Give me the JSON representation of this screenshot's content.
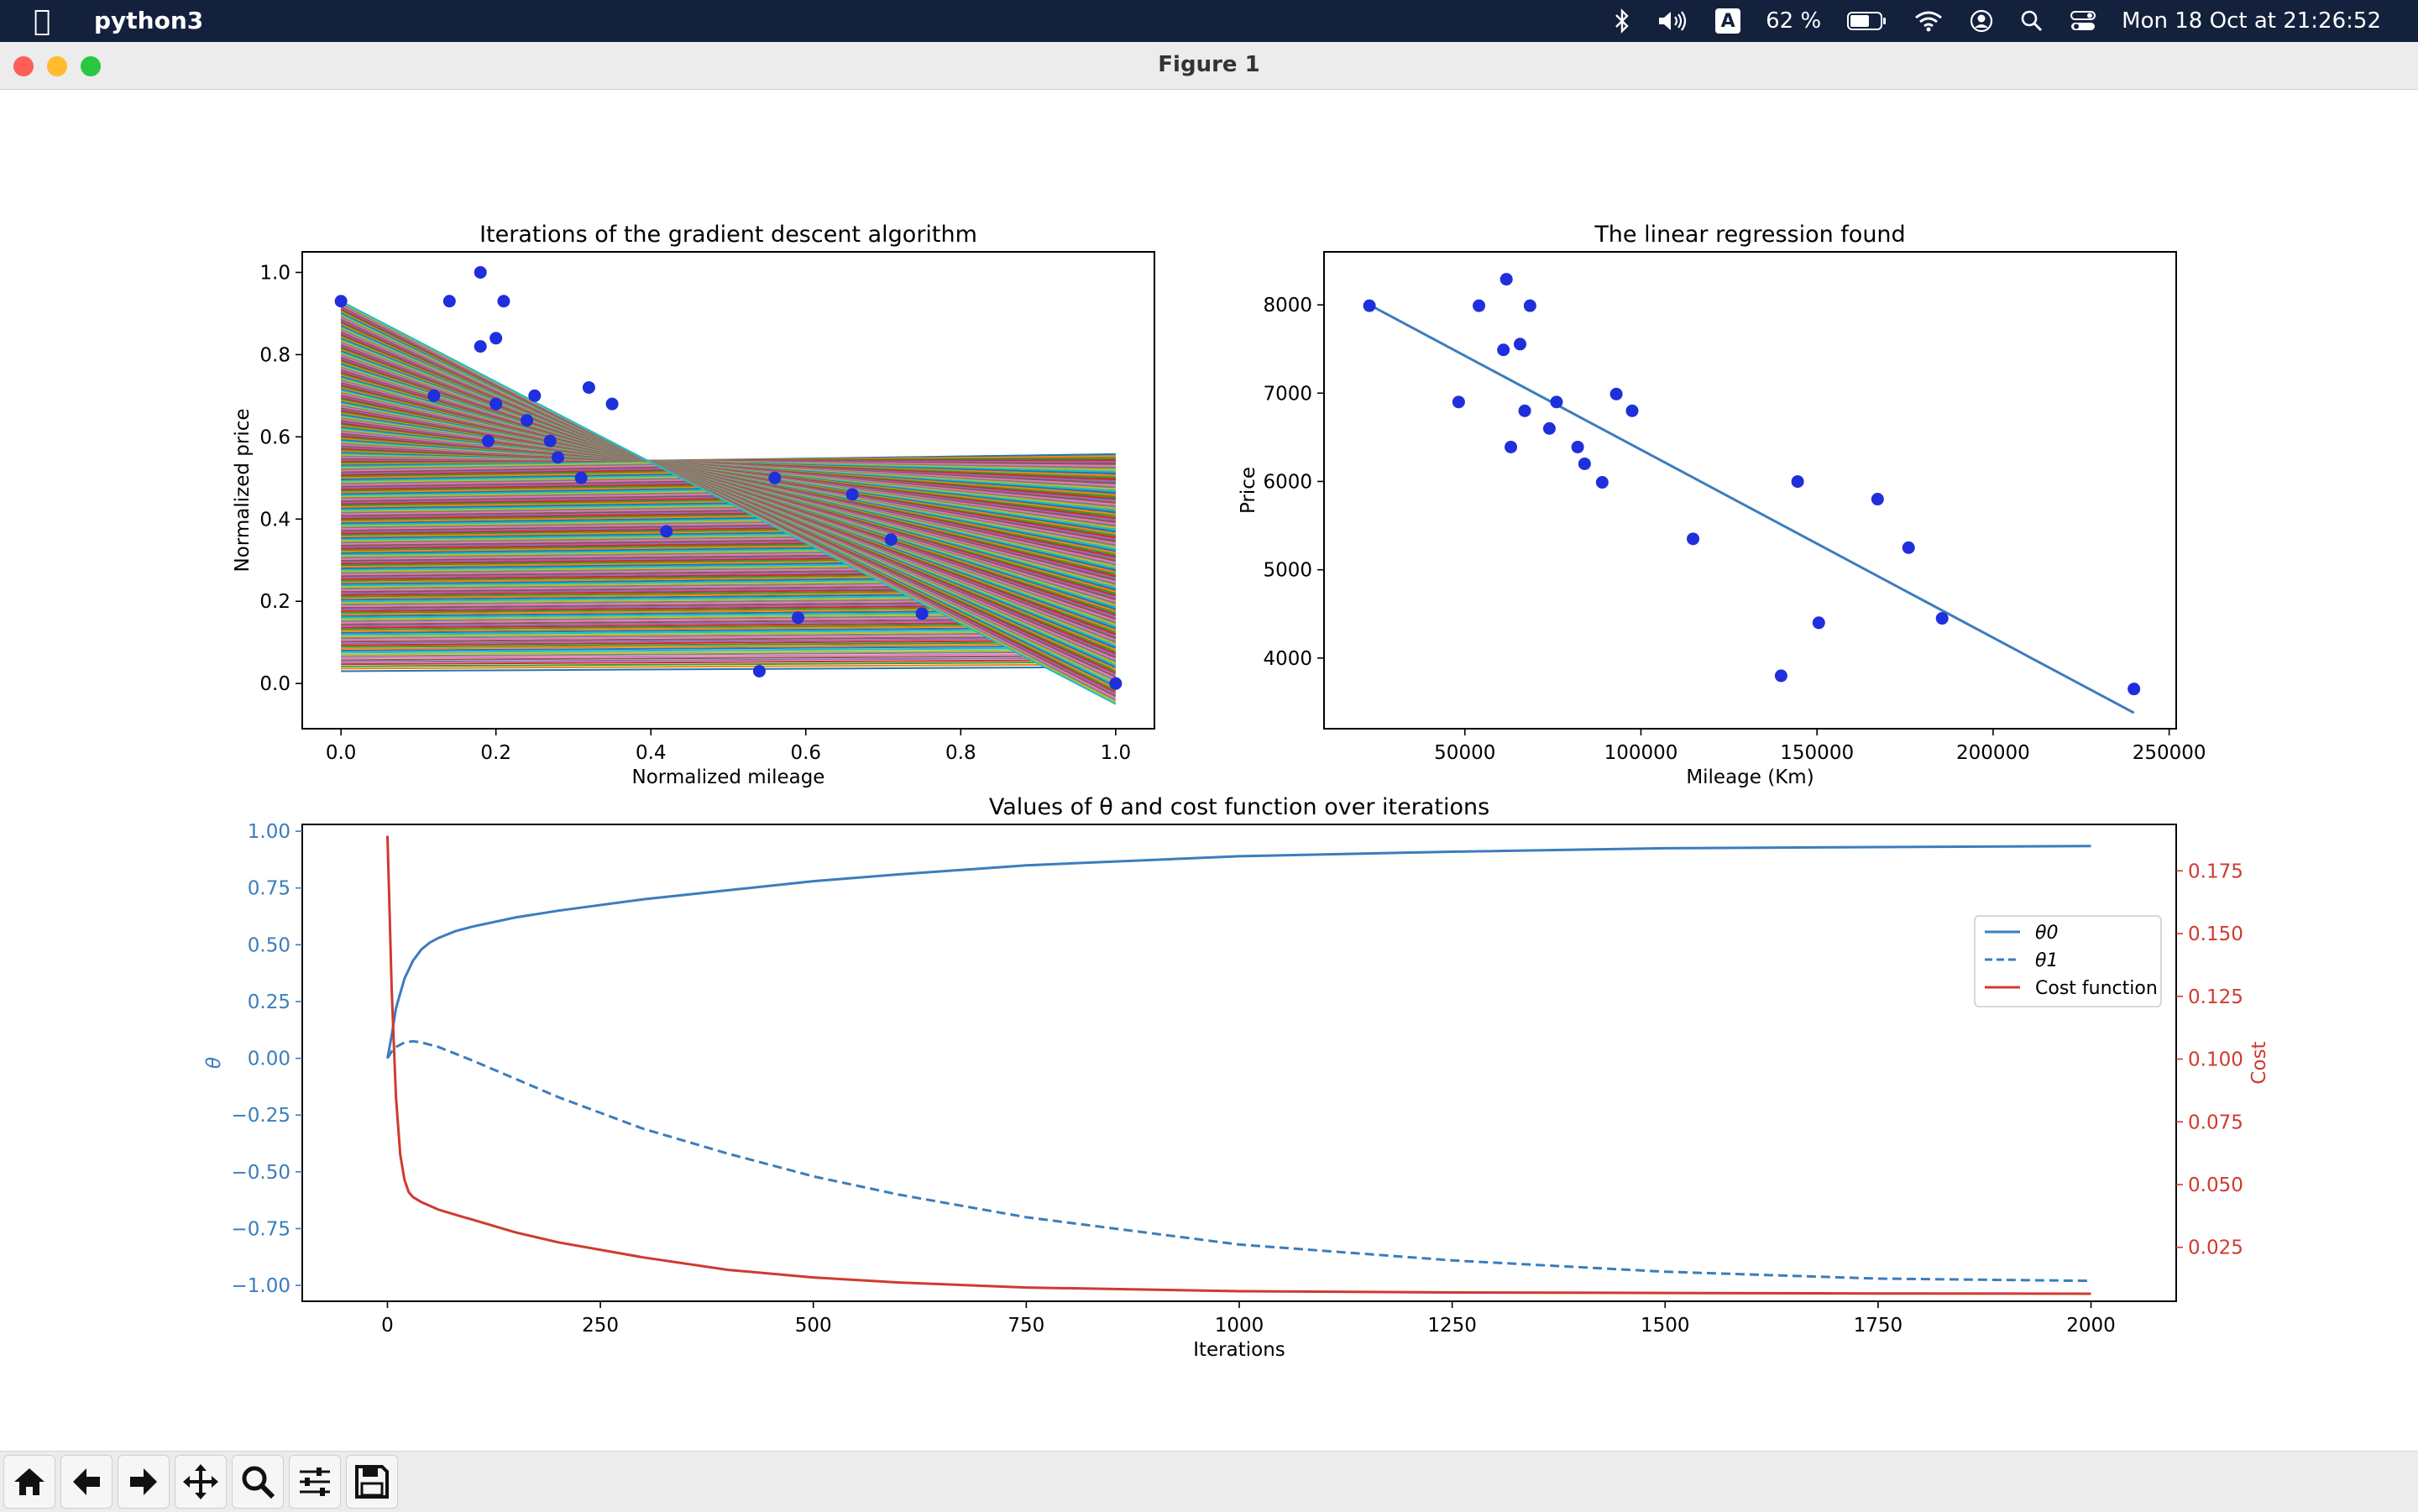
{
  "menubar": {
    "app_name": "python3",
    "battery": "62 %",
    "input_source": "A",
    "datetime": "Mon 18 Oct at  21:26:52",
    "icons": [
      "apple-icon",
      "bluetooth-icon",
      "volume-icon",
      "input-source-icon",
      "battery-icon",
      "wifi-icon",
      "user-icon",
      "search-icon",
      "control-center-icon"
    ]
  },
  "window": {
    "title": "Figure 1",
    "controls": [
      "close",
      "minimize",
      "zoom"
    ],
    "colors": {
      "close": "#ff5f57",
      "minimize": "#febc2e",
      "zoom": "#28c840"
    }
  },
  "toolbar": {
    "buttons": [
      "home-icon",
      "back-icon",
      "forward-icon",
      "pan-icon",
      "zoom-icon",
      "configure-subplots-icon",
      "save-icon"
    ]
  },
  "chart_data": [
    {
      "type": "scatter",
      "title": "Iterations of the gradient descent algorithm",
      "xlabel": "Normalized mileage",
      "ylabel": "Normalized price",
      "xlim": [
        -0.05,
        1.05
      ],
      "ylim": [
        -0.11,
        1.05
      ],
      "xticks": [
        "0.0",
        "0.2",
        "0.4",
        "0.6",
        "0.8",
        "1.0"
      ],
      "yticks": [
        "0.0",
        "0.2",
        "0.4",
        "0.6",
        "0.8",
        "1.0"
      ],
      "points": {
        "x": [
          0.0,
          0.14,
          0.18,
          0.18,
          0.2,
          0.21,
          0.12,
          0.2,
          0.24,
          0.25,
          0.19,
          0.27,
          0.28,
          0.31,
          0.32,
          0.35,
          0.42,
          0.56,
          0.66,
          0.71,
          0.59,
          0.75,
          0.54,
          1.0
        ],
        "y": [
          0.93,
          0.93,
          1.0,
          0.82,
          0.84,
          0.93,
          0.7,
          0.68,
          0.64,
          0.7,
          0.59,
          0.59,
          0.55,
          0.5,
          0.72,
          0.68,
          0.37,
          0.5,
          0.46,
          0.35,
          0.16,
          0.17,
          0.03,
          0.0
        ]
      },
      "point_color": "#1f2fdb",
      "iteration_lines": {
        "count": 2000,
        "final": {
          "theta0": 0.93,
          "theta1": -0.98
        },
        "colors": [
          "#1f77b4",
          "#ff7f0e",
          "#2ca02c",
          "#d62728",
          "#9467bd",
          "#8c564b",
          "#e377c2",
          "#7f7f7f",
          "#bcbd22",
          "#17becf"
        ]
      }
    },
    {
      "type": "scatter",
      "title": "The linear regression found",
      "xlabel": "Mileage (Km)",
      "ylabel": "Price",
      "xlim": [
        10000,
        252000
      ],
      "ylim": [
        3200,
        8600
      ],
      "xticks": [
        "50000",
        "100000",
        "150000",
        "200000",
        "250000"
      ],
      "yticks": [
        "4000",
        "5000",
        "6000",
        "7000",
        "8000"
      ],
      "points": {
        "x": [
          22899,
          48235,
          54000,
          61789,
          60949,
          65674,
          67000,
          63060,
          68500,
          74000,
          76025,
          82029,
          84000,
          89000,
          93000,
          97500,
          114800,
          139800,
          144500,
          150500,
          167200,
          176000,
          185530,
          240000
        ],
        "y": [
          7990,
          6900,
          7990,
          8290,
          7490,
          7555,
          6800,
          6390,
          7990,
          6600,
          6900,
          6390,
          6200,
          5990,
          6990,
          6800,
          5350,
          3800,
          5999,
          4400,
          5800,
          5250,
          4450,
          3650
        ]
      },
      "fit_line": {
        "x": [
          22899,
          240000
        ],
        "y": [
          8000,
          3380
        ]
      },
      "point_color": "#1f2fdb",
      "line_color": "#3b7dbd"
    },
    {
      "type": "line",
      "title": "Values of θ and cost function over iterations",
      "xlabel": "Iterations",
      "ylabel": "θ",
      "ylabel_right": "Cost",
      "xlim": [
        -100,
        2100
      ],
      "ylim": [
        -1.07,
        1.03
      ],
      "ylim_right": [
        0.0035,
        0.1935
      ],
      "xticks": [
        "0",
        "250",
        "500",
        "750",
        "1000",
        "1250",
        "1500",
        "1750",
        "2000"
      ],
      "yticks": [
        "−1.00",
        "−0.75",
        "−0.50",
        "−0.25",
        "0.00",
        "0.25",
        "0.50",
        "0.75",
        "1.00"
      ],
      "yticks_right": [
        "0.025",
        "0.050",
        "0.075",
        "0.100",
        "0.125",
        "0.150",
        "0.175"
      ],
      "legend": [
        "θ0",
        "θ1",
        "Cost function"
      ],
      "legend_placement": "center-right",
      "series": [
        {
          "name": "θ0",
          "style": "solid",
          "color": "#3b7dbd",
          "x": [
            0,
            5,
            10,
            20,
            30,
            40,
            50,
            60,
            80,
            100,
            150,
            200,
            300,
            400,
            500,
            600,
            750,
            1000,
            1250,
            1500,
            1750,
            2000
          ],
          "y": [
            0.0,
            0.1,
            0.22,
            0.35,
            0.43,
            0.48,
            0.51,
            0.53,
            0.56,
            0.58,
            0.62,
            0.65,
            0.7,
            0.74,
            0.78,
            0.81,
            0.85,
            0.89,
            0.91,
            0.925,
            0.93,
            0.935
          ]
        },
        {
          "name": "θ1",
          "style": "dashed",
          "color": "#3b7dbd",
          "x": [
            0,
            5,
            10,
            20,
            30,
            40,
            50,
            60,
            80,
            100,
            150,
            200,
            300,
            400,
            500,
            600,
            750,
            1000,
            1250,
            1500,
            1750,
            2000
          ],
          "y": [
            0.0,
            0.03,
            0.05,
            0.07,
            0.075,
            0.07,
            0.06,
            0.05,
            0.02,
            -0.01,
            -0.09,
            -0.17,
            -0.31,
            -0.42,
            -0.52,
            -0.6,
            -0.7,
            -0.82,
            -0.89,
            -0.94,
            -0.97,
            -0.98
          ]
        },
        {
          "name": "Cost function",
          "style": "solid",
          "color": "#d03a2f",
          "x": [
            0,
            2,
            5,
            10,
            15,
            20,
            25,
            30,
            40,
            50,
            60,
            80,
            100,
            150,
            200,
            300,
            400,
            500,
            600,
            750,
            1000,
            1250,
            1500,
            1750,
            2000
          ],
          "y": [
            0.189,
            0.165,
            0.128,
            0.085,
            0.062,
            0.052,
            0.047,
            0.045,
            0.043,
            0.0415,
            0.04,
            0.038,
            0.036,
            0.031,
            0.027,
            0.021,
            0.016,
            0.013,
            0.011,
            0.009,
            0.0075,
            0.007,
            0.0068,
            0.0066,
            0.0065
          ]
        }
      ],
      "left_axis_color": "#3b7dbd",
      "right_axis_color": "#d03a2f"
    }
  ]
}
